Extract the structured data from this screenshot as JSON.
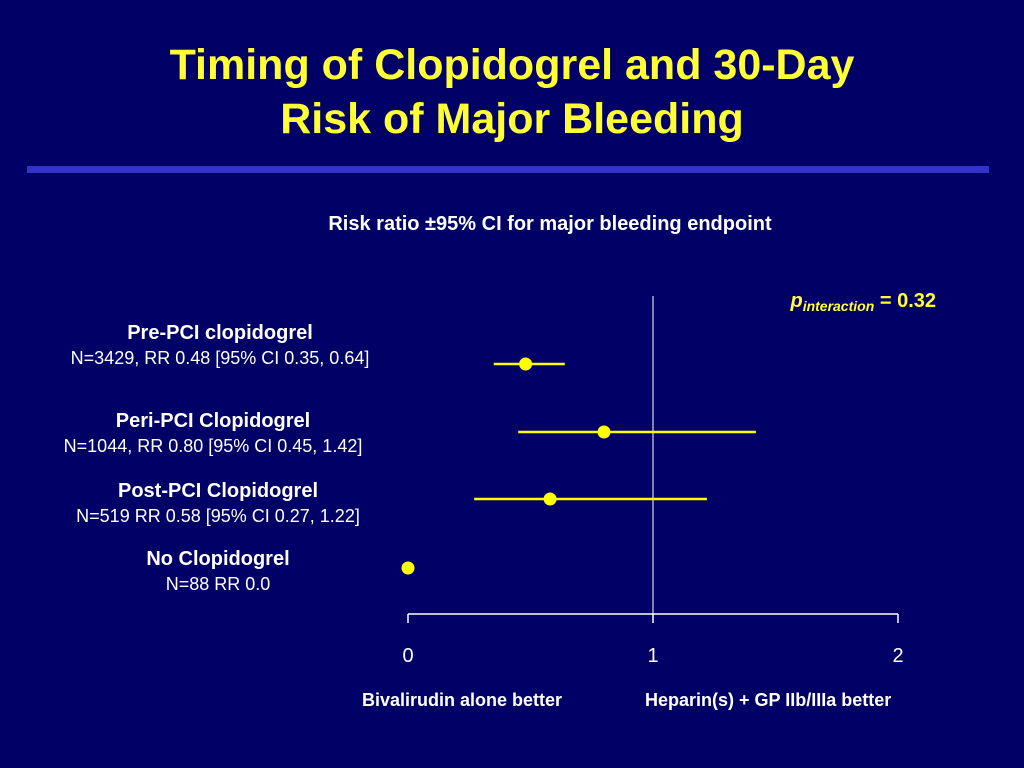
{
  "slide": {
    "title_line1": "Timing of Clopidogrel and 30-Day",
    "title_line2": "Risk of Major Bleeding",
    "title_color": "#ffff33",
    "background_color": "#000066",
    "rule_color": "#3333cc"
  },
  "chart_data": {
    "type": "forest",
    "title": "Risk ratio ±95% CI for major bleeding endpoint",
    "p_interaction": {
      "symbol": "p",
      "subscript": "interaction",
      "equals_text": "= 0.32"
    },
    "xlim": [
      0,
      2
    ],
    "x_ticks": [
      0,
      1,
      2
    ],
    "x_tick_labels": [
      "0",
      "1",
      "2"
    ],
    "reference_line": 1,
    "marker_color": "#ffff00",
    "rows": [
      {
        "name": "Pre-PCI clopidogrel",
        "stats": "N=3429,  RR 0.48 [95% CI 0.35, 0.64]",
        "rr": 0.48,
        "ci_low": 0.35,
        "ci_high": 0.64
      },
      {
        "name": "Peri-PCI Clopidogrel",
        "stats": "N=1044, RR 0.80 [95% CI 0.45, 1.42]",
        "rr": 0.8,
        "ci_low": 0.45,
        "ci_high": 1.42
      },
      {
        "name": "Post-PCI Clopidogrel",
        "stats": "N=519  RR 0.58 [95% CI 0.27, 1.22]",
        "rr": 0.58,
        "ci_low": 0.27,
        "ci_high": 1.22
      },
      {
        "name": "No Clopidogrel",
        "stats": "N=88  RR 0.0",
        "rr": 0.0,
        "ci_low": null,
        "ci_high": null
      }
    ],
    "favor_left": "Bivalirudin alone better",
    "favor_right": "Heparin(s) + GP IIb/IIIa better"
  }
}
